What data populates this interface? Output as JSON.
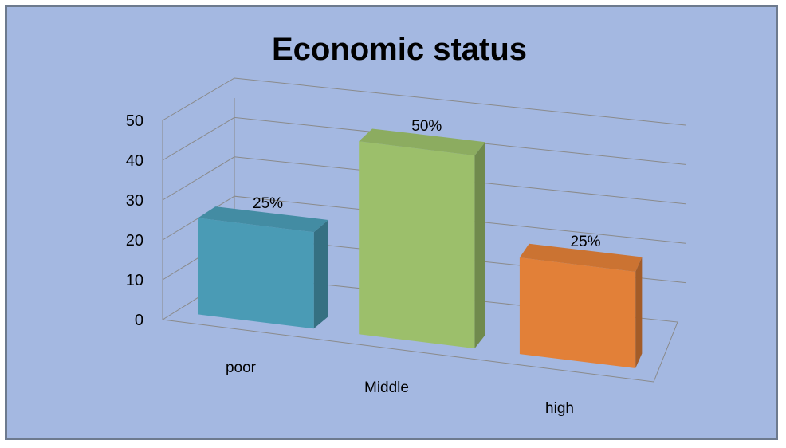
{
  "chart_data": {
    "type": "bar",
    "style": "3d-column",
    "title": "Economic status",
    "xlabel": "",
    "ylabel": "",
    "categories": [
      "poor",
      "Middle",
      "high"
    ],
    "values": [
      25,
      50,
      25
    ],
    "data_labels": [
      "25%",
      "50%",
      "25%"
    ],
    "colors": [
      "#4a9bb5",
      "#9cbf6b",
      "#e28038"
    ],
    "ylim": [
      0,
      50
    ],
    "yticks": [
      "0",
      "10",
      "20",
      "30",
      "40",
      "50"
    ],
    "grid": true,
    "legend": "none",
    "background": "#a4b8e1"
  }
}
